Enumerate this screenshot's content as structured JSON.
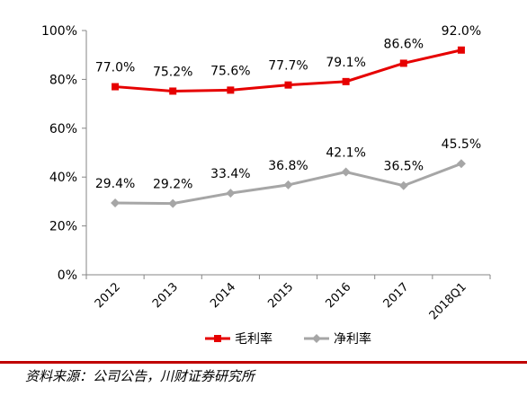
{
  "chart_data": {
    "type": "line",
    "categories": [
      "2012",
      "2013",
      "2014",
      "2015",
      "2016",
      "2017",
      "2018Q1"
    ],
    "ylim": [
      0,
      100
    ],
    "yticks": [
      0,
      20,
      40,
      60,
      80,
      100
    ],
    "ytick_labels": [
      "0%",
      "20%",
      "40%",
      "60%",
      "80%",
      "100%"
    ],
    "grid": false,
    "legend_position": "bottom",
    "series": [
      {
        "name": "毛利率",
        "color": "#e60000",
        "marker": "square",
        "values": [
          77.0,
          75.2,
          75.6,
          77.7,
          79.1,
          86.6,
          92.0
        ],
        "labels": [
          "77.0%",
          "75.2%",
          "75.6%",
          "77.7%",
          "79.1%",
          "86.6%",
          "92.0%"
        ]
      },
      {
        "name": "净利率",
        "color": "#a6a6a6",
        "marker": "diamond",
        "values": [
          29.4,
          29.2,
          33.4,
          36.8,
          42.1,
          36.5,
          45.5
        ],
        "labels": [
          "29.4%",
          "29.2%",
          "33.4%",
          "36.8%",
          "42.1%",
          "36.5%",
          "45.5%"
        ]
      }
    ]
  },
  "source_text": "资料来源：公司公告，川财证券研究所"
}
